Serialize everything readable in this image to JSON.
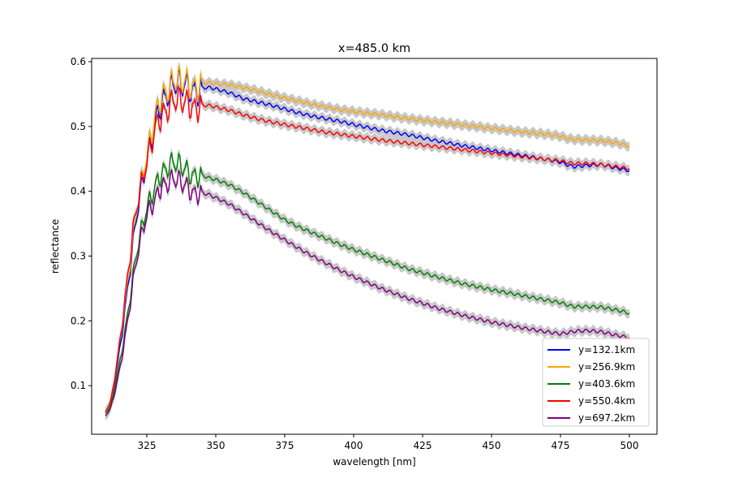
{
  "chart_data": {
    "type": "line",
    "title": "x=485.0 km",
    "xlabel": "wavelength [nm]",
    "ylabel": "reflectance",
    "xlim": [
      305,
      510
    ],
    "ylim": [
      0.025,
      0.605
    ],
    "xticks": [
      325,
      350,
      375,
      400,
      425,
      450,
      475,
      500
    ],
    "yticks": [
      0.1,
      0.2,
      0.3,
      0.4,
      0.5,
      0.6
    ],
    "legend_position": "lower-right",
    "grid": false,
    "uncertainty_band_color": "#c8c8c8",
    "series": [
      {
        "name": "y=132.1km",
        "color": "#0000ff",
        "x": [
          310,
          312,
          315,
          318,
          320,
          322,
          325,
          328,
          330,
          333,
          335,
          338,
          340,
          343,
          345,
          348,
          350,
          355,
          360,
          365,
          370,
          375,
          380,
          385,
          390,
          395,
          400,
          410,
          420,
          430,
          440,
          450,
          460,
          470,
          475,
          478,
          480,
          485,
          490,
          495,
          500
        ],
        "y": [
          0.057,
          0.07,
          0.15,
          0.25,
          0.32,
          0.38,
          0.44,
          0.51,
          0.54,
          0.555,
          0.56,
          0.562,
          0.563,
          0.56,
          0.56,
          0.56,
          0.558,
          0.552,
          0.543,
          0.538,
          0.533,
          0.527,
          0.521,
          0.516,
          0.512,
          0.508,
          0.503,
          0.494,
          0.487,
          0.478,
          0.47,
          0.463,
          0.456,
          0.449,
          0.445,
          0.44,
          0.438,
          0.44,
          0.441,
          0.436,
          0.432
        ]
      },
      {
        "name": "y=256.9km",
        "color": "#ffa500",
        "x": [
          310,
          312,
          315,
          318,
          320,
          322,
          325,
          328,
          330,
          333,
          335,
          338,
          340,
          343,
          345,
          348,
          350,
          355,
          360,
          365,
          370,
          375,
          380,
          385,
          390,
          395,
          400,
          410,
          420,
          430,
          440,
          450,
          460,
          470,
          475,
          478,
          480,
          485,
          490,
          495,
          500
        ],
        "y": [
          0.058,
          0.072,
          0.16,
          0.26,
          0.33,
          0.39,
          0.45,
          0.52,
          0.55,
          0.56,
          0.565,
          0.567,
          0.568,
          0.567,
          0.567,
          0.567,
          0.566,
          0.564,
          0.56,
          0.555,
          0.549,
          0.544,
          0.539,
          0.534,
          0.53,
          0.526,
          0.523,
          0.518,
          0.512,
          0.507,
          0.502,
          0.497,
          0.492,
          0.488,
          0.485,
          0.481,
          0.48,
          0.479,
          0.478,
          0.475,
          0.47
        ]
      },
      {
        "name": "y=403.6km",
        "color": "#008000",
        "x": [
          310,
          312,
          315,
          318,
          320,
          322,
          325,
          328,
          330,
          333,
          335,
          338,
          340,
          343,
          345,
          348,
          350,
          355,
          360,
          365,
          370,
          375,
          380,
          385,
          390,
          395,
          400,
          410,
          420,
          430,
          440,
          450,
          460,
          470,
          475,
          478,
          480,
          485,
          490,
          495,
          500
        ],
        "y": [
          0.057,
          0.068,
          0.13,
          0.21,
          0.27,
          0.32,
          0.37,
          0.41,
          0.43,
          0.44,
          0.44,
          0.435,
          0.43,
          0.428,
          0.425,
          0.42,
          0.418,
          0.41,
          0.398,
          0.384,
          0.37,
          0.356,
          0.345,
          0.336,
          0.327,
          0.318,
          0.31,
          0.295,
          0.28,
          0.268,
          0.257,
          0.248,
          0.24,
          0.232,
          0.228,
          0.224,
          0.222,
          0.222,
          0.221,
          0.217,
          0.212
        ]
      },
      {
        "name": "y=550.4km",
        "color": "#ff0000",
        "x": [
          310,
          312,
          315,
          318,
          320,
          322,
          325,
          328,
          330,
          333,
          335,
          338,
          340,
          343,
          345,
          348,
          350,
          355,
          360,
          365,
          370,
          375,
          380,
          385,
          390,
          395,
          400,
          410,
          420,
          430,
          440,
          450,
          460,
          470,
          475,
          478,
          480,
          485,
          490,
          495,
          500
        ],
        "y": [
          0.06,
          0.075,
          0.16,
          0.27,
          0.34,
          0.39,
          0.44,
          0.5,
          0.52,
          0.53,
          0.535,
          0.536,
          0.536,
          0.534,
          0.533,
          0.532,
          0.53,
          0.525,
          0.518,
          0.512,
          0.507,
          0.503,
          0.499,
          0.495,
          0.491,
          0.488,
          0.485,
          0.479,
          0.474,
          0.469,
          0.464,
          0.459,
          0.454,
          0.449,
          0.447,
          0.444,
          0.443,
          0.443,
          0.441,
          0.438,
          0.435
        ]
      },
      {
        "name": "y=697.2km",
        "color": "#800080",
        "x": [
          310,
          312,
          315,
          318,
          320,
          322,
          325,
          328,
          330,
          333,
          335,
          338,
          340,
          343,
          345,
          348,
          350,
          355,
          360,
          365,
          370,
          375,
          380,
          385,
          390,
          395,
          400,
          410,
          420,
          430,
          440,
          450,
          460,
          470,
          475,
          478,
          480,
          485,
          490,
          495,
          500
        ],
        "y": [
          0.053,
          0.065,
          0.12,
          0.2,
          0.26,
          0.31,
          0.36,
          0.39,
          0.41,
          0.415,
          0.415,
          0.41,
          0.405,
          0.4,
          0.398,
          0.394,
          0.39,
          0.38,
          0.366,
          0.352,
          0.338,
          0.325,
          0.312,
          0.3,
          0.289,
          0.278,
          0.268,
          0.25,
          0.234,
          0.22,
          0.208,
          0.198,
          0.19,
          0.183,
          0.18,
          0.182,
          0.184,
          0.185,
          0.183,
          0.178,
          0.174
        ]
      }
    ]
  }
}
